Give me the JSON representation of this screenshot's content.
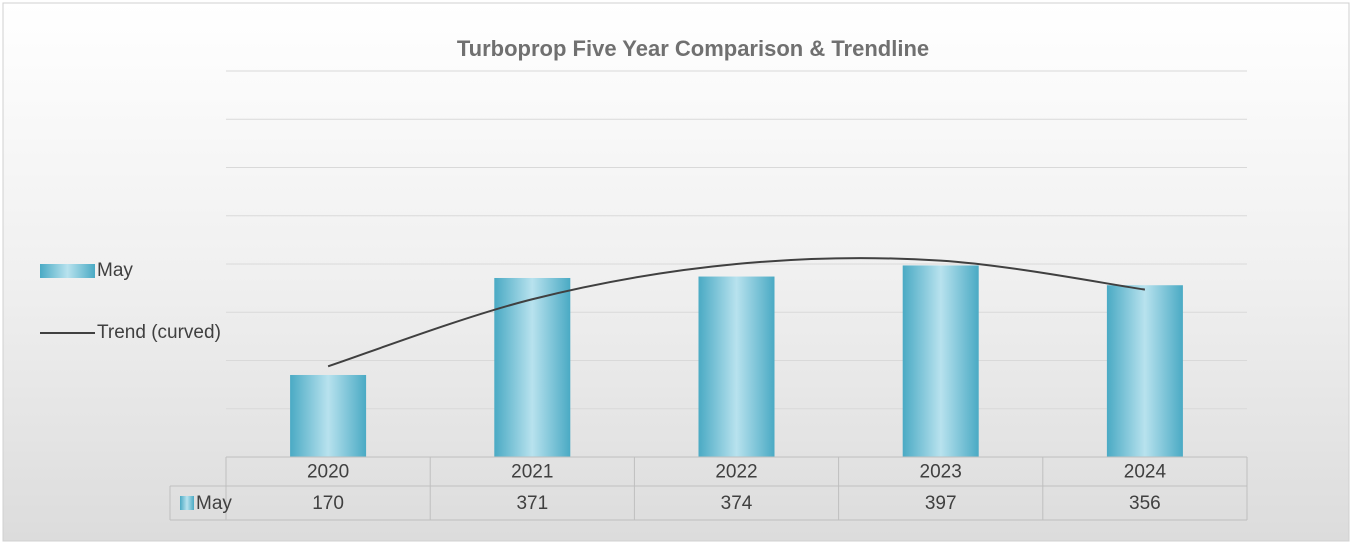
{
  "chart_data": {
    "type": "bar",
    "title": "Turboprop Five Year Comparison & Trendline",
    "categories": [
      "2020",
      "2021",
      "2022",
      "2023",
      "2024"
    ],
    "series": [
      {
        "name": "May",
        "type": "bar",
        "color": "#4bacc6",
        "values": [
          170,
          371,
          374,
          397,
          356
        ]
      },
      {
        "name": "Trend (curved)",
        "type": "line",
        "color": "#404040",
        "values": [
          188,
          327,
          400,
          407,
          347
        ]
      }
    ],
    "ylim": [
      0,
      800
    ],
    "yticks": [
      0,
      100,
      200,
      300,
      400,
      500,
      600,
      700,
      800
    ],
    "grid": true,
    "legend": "left",
    "data_table": true
  }
}
